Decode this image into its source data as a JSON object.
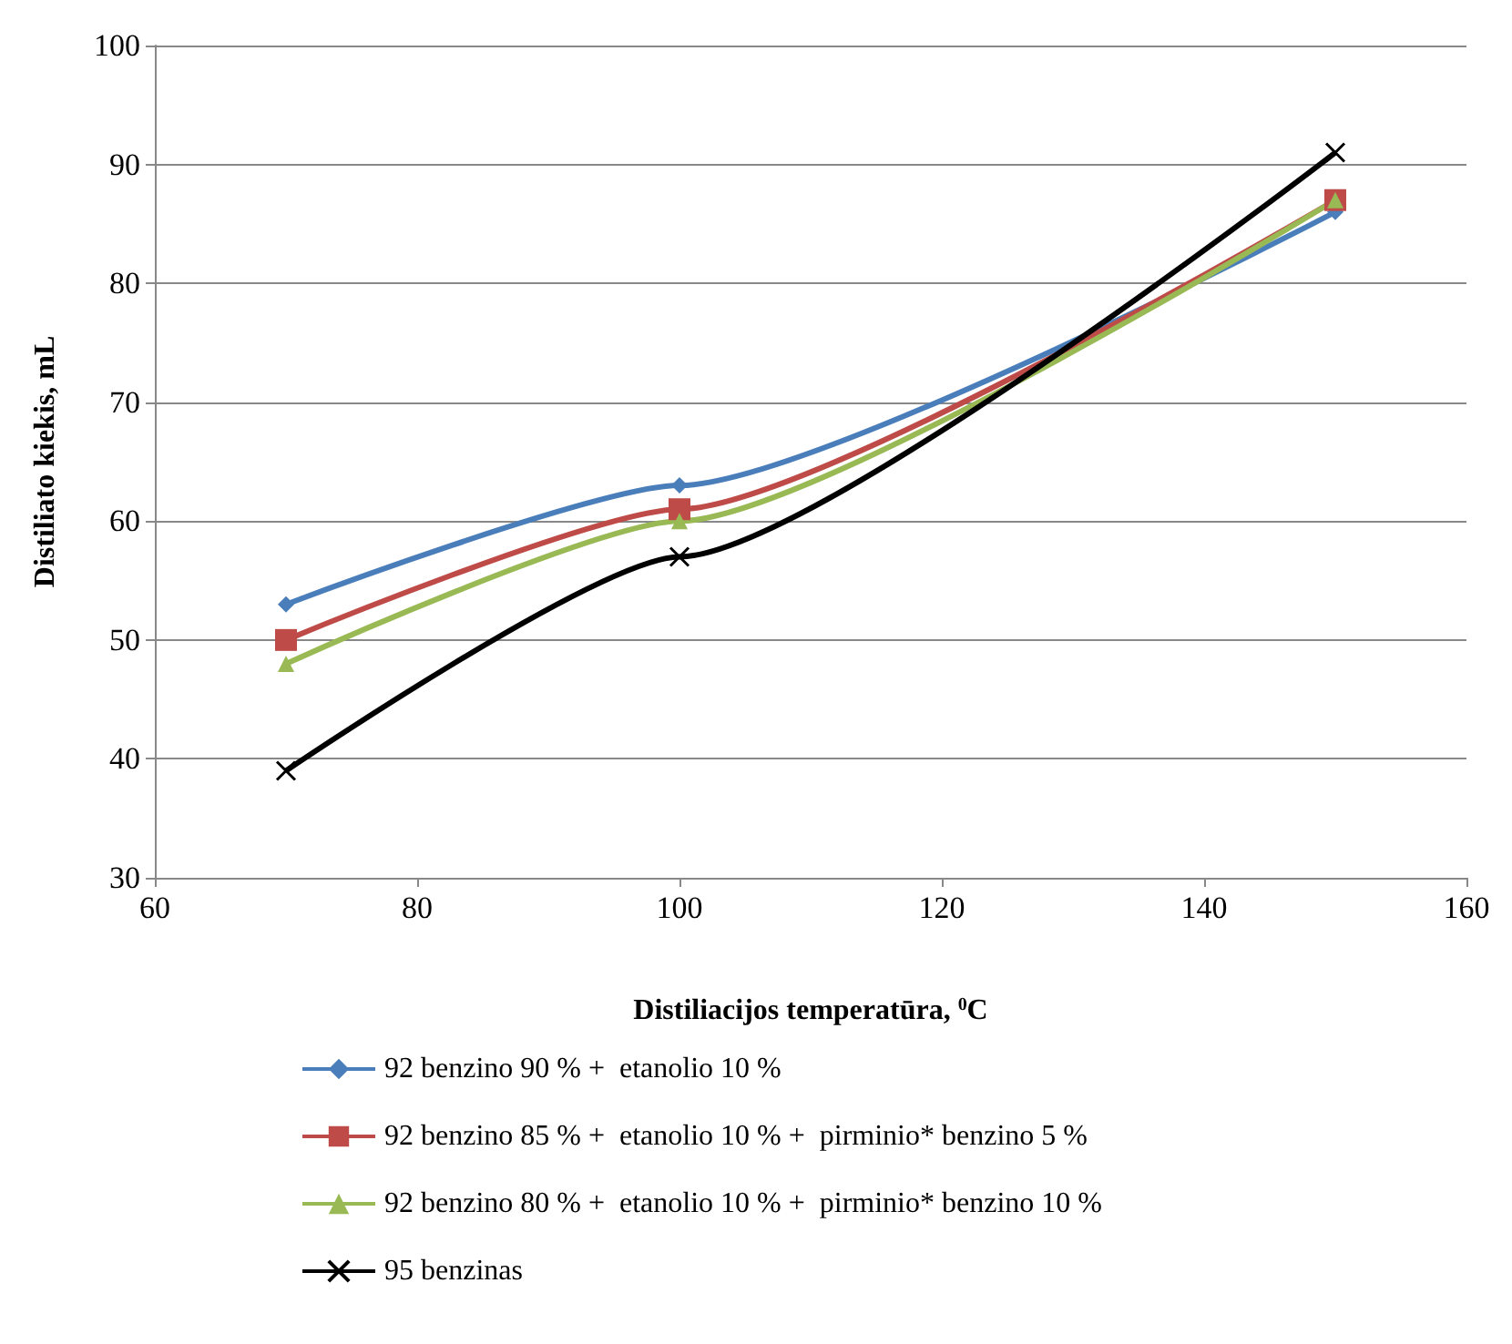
{
  "chart_data": {
    "type": "line",
    "xlabel": "Distiliacijos temperatūra, $^{0}$C",
    "ylabel": "Distiliato kiekis, mL",
    "x": [
      70,
      100,
      150
    ],
    "series": [
      {
        "name": "92 benzino 90 % +  etanolio 10 %",
        "color": "#4a7ebb",
        "marker": "diamond",
        "values": [
          53,
          63,
          86
        ]
      },
      {
        "name": "92 benzino 85 % +  etanolio 10 % +  pirminio* benzino 5 %",
        "color": "#be4b48",
        "marker": "square",
        "values": [
          50,
          61,
          87
        ]
      },
      {
        "name": "92 benzino 80 % +  etanolio 10 % +  pirminio* benzino 10 %",
        "color": "#98b954",
        "marker": "triangle",
        "values": [
          48,
          60,
          87
        ]
      },
      {
        "name": "95 benzinas",
        "color": "#000000",
        "marker": "cross",
        "values": [
          39,
          57,
          91
        ]
      }
    ],
    "xlim": [
      60,
      160
    ],
    "xticks": [
      60,
      80,
      100,
      120,
      140,
      160
    ],
    "ylim": [
      30,
      100
    ],
    "yticks": [
      30,
      40,
      50,
      60,
      70,
      80,
      90,
      100
    ],
    "grid": "y",
    "legend": "bottom"
  }
}
